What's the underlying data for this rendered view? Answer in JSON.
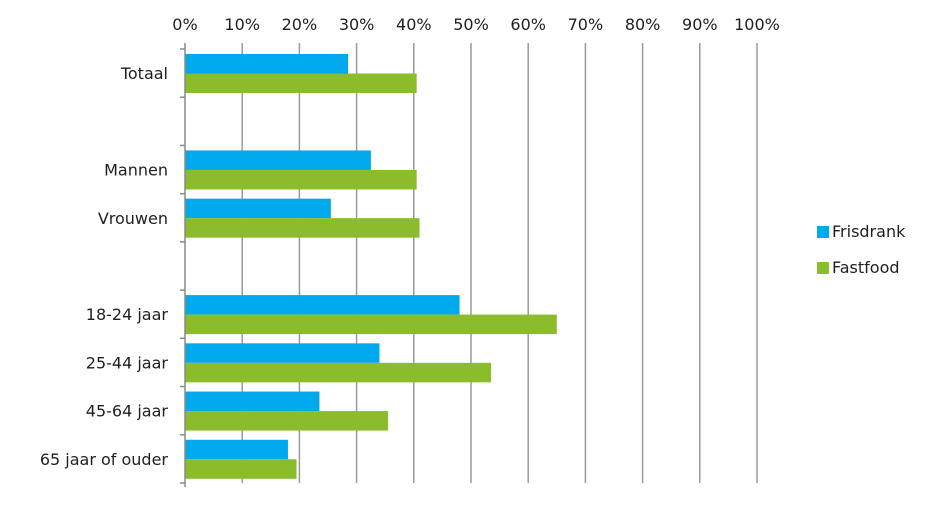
{
  "chart_data": {
    "type": "bar",
    "orientation": "horizontal",
    "categories": [
      "Totaal",
      "",
      "Mannen",
      "Vrouwen",
      "",
      "18-24 jaar",
      "25-44 jaar",
      "45-64 jaar",
      "65 jaar of ouder"
    ],
    "series": [
      {
        "name": "Frisdrank",
        "values": [
          28.5,
          null,
          32.5,
          25.5,
          null,
          48,
          34,
          23.5,
          18
        ],
        "color": "#00a8ec"
      },
      {
        "name": "Fastfood",
        "values": [
          40.5,
          null,
          40.5,
          41,
          null,
          65,
          53.5,
          35.5,
          19.5
        ],
        "color": "#8abc2b"
      }
    ],
    "x_ticks": [
      "0%",
      "10%",
      "20%",
      "30%",
      "40%",
      "50%",
      "60%",
      "70%",
      "80%",
      "90%",
      "100%"
    ],
    "xlim": [
      0,
      100
    ],
    "x_axis_position": "top",
    "grid": true,
    "legend_position": "right",
    "title": "",
    "xlabel": "",
    "ylabel": ""
  }
}
